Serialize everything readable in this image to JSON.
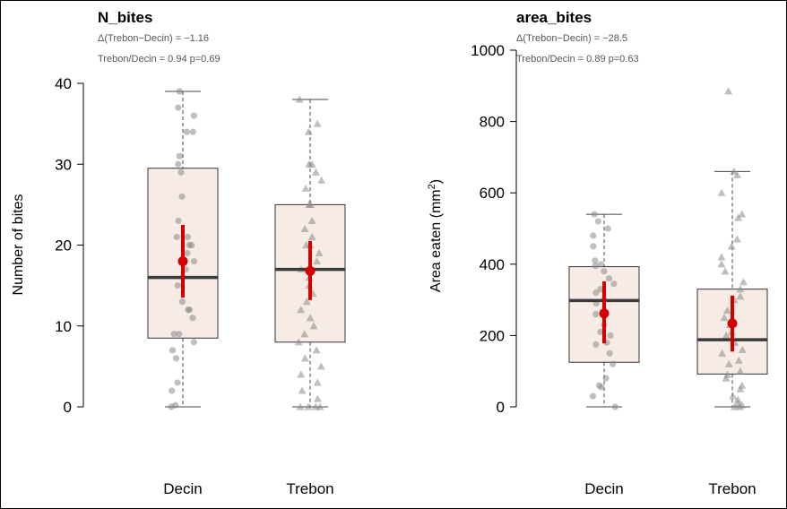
{
  "chart_data": [
    {
      "type": "box",
      "title": "N_bites",
      "stats": [
        "Δ(Trebon−Decin) = −1.16",
        "Trebon/Decin = 0.94   p=0.69"
      ],
      "ylabel": "Number of bites",
      "ylabel_sup": "",
      "ylabel_suffix": "",
      "ylim": [
        0,
        40
      ],
      "yticks": [
        0,
        10,
        20,
        30,
        40
      ],
      "categories": [
        "Decin",
        "Trebon"
      ],
      "boxes": [
        {
          "min": 0,
          "q1": 8.5,
          "median": 16,
          "q3": 29.5,
          "max": 39,
          "mean": 18,
          "ci": [
            13.5,
            22.5
          ]
        },
        {
          "min": 0,
          "q1": 8,
          "median": 17,
          "q3": 25,
          "max": 38,
          "mean": 16.8,
          "ci": [
            13.2,
            20.5
          ]
        }
      ],
      "points": [
        [
          0,
          0.2,
          2,
          3,
          6,
          7,
          8,
          9,
          9,
          11,
          12,
          12,
          13,
          15,
          16,
          17,
          18,
          19,
          20,
          20,
          21,
          21,
          23,
          26,
          29,
          30,
          31,
          34,
          34,
          36,
          37,
          39
        ],
        [
          0,
          0,
          0,
          0,
          1,
          2,
          3,
          4,
          5,
          6,
          7,
          8,
          9,
          10,
          11,
          12,
          13,
          14,
          15,
          16,
          17,
          18,
          19,
          20,
          20,
          21,
          22,
          23,
          25,
          25,
          27,
          28,
          29,
          30,
          30,
          34,
          35,
          38
        ]
      ]
    },
    {
      "type": "box",
      "title": "area_bites",
      "stats": [
        "Δ(Trebon−Decin) = −28.5",
        "Trebon/Decin = 0.89   p=0.63"
      ],
      "ylabel": "Area eaten (mm",
      "ylabel_sup": "2",
      "ylabel_suffix": ")",
      "ylim": [
        0,
        1000
      ],
      "yticks": [
        0,
        200,
        400,
        600,
        800,
        1000
      ],
      "categories": [
        "Decin",
        "Trebon"
      ],
      "boxes": [
        {
          "min": 0,
          "q1": 125,
          "median": 298,
          "q3": 393,
          "max": 540,
          "mean": 262,
          "ci": [
            178,
            352
          ]
        },
        {
          "min": 0,
          "q1": 92,
          "median": 188,
          "q3": 330,
          "max": 660,
          "mean": 234,
          "ci": [
            155,
            312
          ]
        }
      ],
      "points": [
        [
          0,
          30,
          55,
          60,
          80,
          120,
          150,
          175,
          180,
          200,
          210,
          230,
          260,
          290,
          300,
          320,
          330,
          345,
          360,
          380,
          395,
          400,
          410,
          450,
          480,
          500,
          520,
          540
        ],
        [
          0,
          0,
          5,
          10,
          20,
          30,
          50,
          60,
          80,
          90,
          100,
          120,
          130,
          150,
          160,
          180,
          200,
          210,
          230,
          250,
          270,
          300,
          310,
          330,
          350,
          380,
          400,
          420,
          450,
          470,
          530,
          540,
          600,
          650,
          660,
          885
        ]
      ]
    }
  ]
}
